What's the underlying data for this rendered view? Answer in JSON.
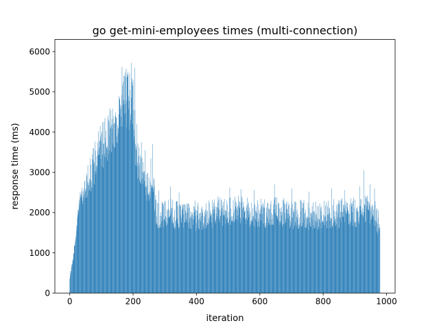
{
  "chart_data": {
    "type": "bar",
    "title": "go get-mini-employees times (multi-connection)",
    "xlabel": "iteration",
    "ylabel": "response time (ms)",
    "xlim": [
      -47,
      1027
    ],
    "ylim": [
      0,
      6300
    ],
    "xticks": [
      0,
      200,
      400,
      600,
      800,
      1000
    ],
    "xtick_labels": [
      "0",
      "200",
      "400",
      "600",
      "800",
      "1000"
    ],
    "yticks": [
      0,
      1000,
      2000,
      3000,
      4000,
      5000,
      6000
    ],
    "ytick_labels": [
      "0",
      "1000",
      "2000",
      "3000",
      "4000",
      "5000",
      "6000"
    ],
    "grid": false,
    "legend": "none",
    "bar_color": "#1f77b4",
    "bar_width": 0.8,
    "iterations": 980,
    "peak": {
      "x": 195,
      "y": 5720
    },
    "envelope": [
      [
        0,
        400
      ],
      [
        10,
        900
      ],
      [
        20,
        1600
      ],
      [
        30,
        2400
      ],
      [
        40,
        2800
      ],
      [
        50,
        3100
      ],
      [
        60,
        3300
      ],
      [
        70,
        3500
      ],
      [
        80,
        3800
      ],
      [
        90,
        4100
      ],
      [
        100,
        4200
      ],
      [
        110,
        4400
      ],
      [
        120,
        4550
      ],
      [
        130,
        4700
      ],
      [
        140,
        4800
      ],
      [
        150,
        5000
      ],
      [
        160,
        5100
      ],
      [
        170,
        5500
      ],
      [
        180,
        5600
      ],
      [
        190,
        5500
      ],
      [
        200,
        5400
      ],
      [
        210,
        4000
      ],
      [
        220,
        3700
      ],
      [
        230,
        3300
      ],
      [
        240,
        3200
      ],
      [
        250,
        3000
      ],
      [
        260,
        3400
      ],
      [
        270,
        2500
      ],
      [
        280,
        2300
      ],
      [
        300,
        2300
      ],
      [
        320,
        2350
      ],
      [
        350,
        2300
      ],
      [
        400,
        2250
      ],
      [
        450,
        2350
      ],
      [
        500,
        2450
      ],
      [
        550,
        2400
      ],
      [
        600,
        2350
      ],
      [
        650,
        2400
      ],
      [
        700,
        2350
      ],
      [
        750,
        2300
      ],
      [
        800,
        2300
      ],
      [
        850,
        2350
      ],
      [
        900,
        2400
      ],
      [
        930,
        2450
      ],
      [
        960,
        2400
      ],
      [
        979,
        2000
      ]
    ],
    "spikes": [
      [
        165,
        5620
      ],
      [
        178,
        5580
      ],
      [
        183,
        5400
      ],
      [
        195,
        5720
      ],
      [
        205,
        5600
      ],
      [
        212,
        4200
      ],
      [
        226,
        3750
      ],
      [
        238,
        3550
      ],
      [
        256,
        3350
      ],
      [
        262,
        3700
      ],
      [
        281,
        2550
      ],
      [
        318,
        2650
      ],
      [
        345,
        2500
      ],
      [
        395,
        2300
      ],
      [
        468,
        2400
      ],
      [
        505,
        2620
      ],
      [
        540,
        2580
      ],
      [
        582,
        2560
      ],
      [
        646,
        2700
      ],
      [
        701,
        2600
      ],
      [
        755,
        2520
      ],
      [
        826,
        2600
      ],
      [
        867,
        2560
      ],
      [
        915,
        2650
      ],
      [
        928,
        3050
      ],
      [
        948,
        2700
      ],
      [
        962,
        2600
      ]
    ]
  }
}
